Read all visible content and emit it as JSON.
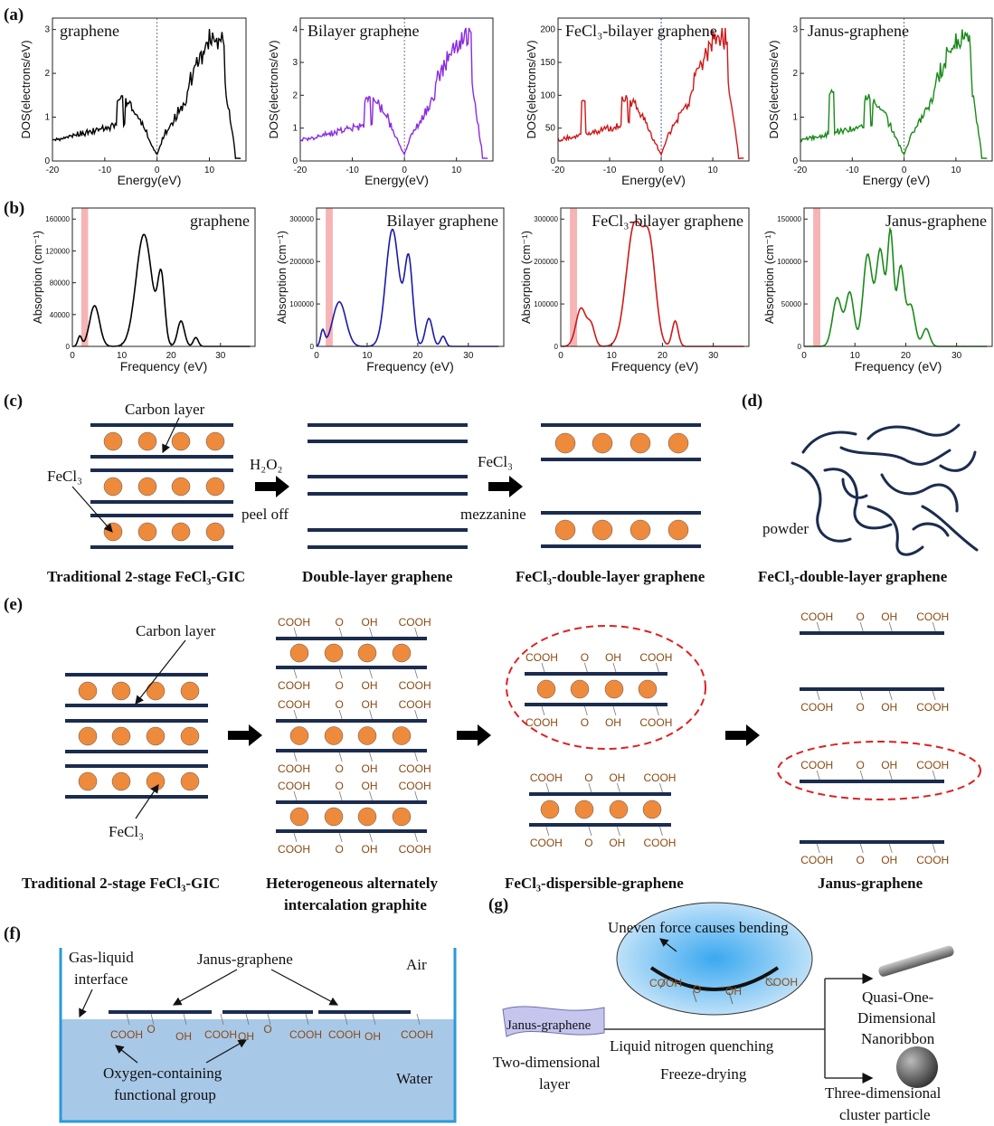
{
  "panels": {
    "a": "(a)",
    "b": "(b)",
    "c": "(c)",
    "d": "(d)",
    "e": "(e)",
    "f": "(f)",
    "g": "(g)"
  },
  "colors": {
    "graphene": "#000000",
    "bilayer_dos": "#8a2be2",
    "bilayer_abs": "#1a1aaa",
    "fecl3": "#d01818",
    "janus": "#1a8a1a",
    "layer": "#1b2c4e",
    "ball": "#ee8a3c",
    "highlight": "#f7b4b4",
    "water": "#a8c8e8",
    "func_group": "#8a4a12"
  },
  "dos_charts": [
    {
      "title": "graphene",
      "ylabel": "DOS(electrons/eV)",
      "xlabel": "Energy(eV)",
      "xticks": [
        "-20",
        "-10",
        "0",
        "10"
      ],
      "yticks": [
        "0",
        "1",
        "2",
        "3"
      ]
    },
    {
      "title": "Bilayer graphene",
      "ylabel": "DOS(electrons/eV)",
      "xlabel": "Energy(eV)",
      "xticks": [
        "-20",
        "-10",
        "0",
        "10"
      ],
      "yticks": [
        "0",
        "1",
        "2",
        "3",
        "4"
      ]
    },
    {
      "title": "FeCl₃-bilayer graphene",
      "ylabel": "DOS(electrons/eV)",
      "xlabel": "Energy(eV)",
      "xticks": [
        "-20",
        "-10",
        "0",
        "10"
      ],
      "yticks": [
        "0",
        "50",
        "100",
        "150",
        "200"
      ]
    },
    {
      "title": "Janus-graphene",
      "ylabel": "DOS(electrons/eV)",
      "xlabel": "Energy (eV)",
      "xticks": [
        "-20",
        "-10",
        "0",
        "10"
      ],
      "yticks": [
        "0",
        "1",
        "2",
        "3"
      ]
    }
  ],
  "abs_charts": [
    {
      "title": "graphene",
      "ylabel": "Absorption (cm⁻¹)",
      "xlabel": "Frequency (eV)",
      "xticks": [
        "0",
        "10",
        "20",
        "30"
      ],
      "yticks": [
        "0",
        "40000",
        "80000",
        "120000",
        "160000"
      ]
    },
    {
      "title": "Bilayer graphene",
      "ylabel": "Absorption (cm⁻¹)",
      "xlabel": "Frequency (eV)",
      "xticks": [
        "0",
        "10",
        "20",
        "30"
      ],
      "yticks": [
        "0",
        "100000",
        "200000",
        "300000"
      ]
    },
    {
      "title": "FeCl₃-bilayer graphene",
      "ylabel": "Absorption (cm⁻¹)",
      "xlabel": "Frequency (eV)",
      "xticks": [
        "0",
        "10",
        "20",
        "30"
      ],
      "yticks": [
        "0",
        "100000",
        "200000",
        "300000"
      ]
    },
    {
      "title": "Janus-graphene",
      "ylabel": "Absorption (cm⁻¹)",
      "xlabel": "Frequency (eV)",
      "xticks": [
        "0",
        "10",
        "20",
        "30"
      ],
      "yticks": [
        "0",
        "50000",
        "100000",
        "150000"
      ]
    }
  ],
  "c": {
    "carbon_layer": "Carbon layer",
    "fecl3": "FeCl₃",
    "h2o2": "H₂O₂",
    "peel_off": "peel off",
    "fecl3_arrow": "FeCl₃",
    "mezzanine": "mezzanine",
    "caption1": "Traditional 2-stage FeCl₃-GIC",
    "caption2": "Double-layer graphene",
    "caption3": "FeCl₃-double-layer graphene"
  },
  "d": {
    "powder": "powder",
    "caption": "FeCl₃-double-layer graphene"
  },
  "e": {
    "carbon_layer": "Carbon layer",
    "fecl3": "FeCl₃",
    "cooh": "COOH",
    "oh": "OH",
    "o": "O",
    "caption1": "Traditional 2-stage FeCl₃-GIC",
    "caption2a": "Heterogeneous alternately",
    "caption2b": "intercalation graphite",
    "caption3": "FeCl₃-dispersible-graphene",
    "caption4": "Janus-graphene"
  },
  "f": {
    "gas_liquid_1": "Gas-liquid",
    "gas_liquid_2": "interface",
    "janus": "Janus-graphene",
    "air": "Air",
    "water": "Water",
    "oxygen_1": "Oxygen-containing",
    "oxygen_2": "functional group"
  },
  "g": {
    "uneven": "Uneven force causes bending",
    "janus_label": "Janus-graphene",
    "two_dim_1": "Two-dimensional",
    "two_dim_2": "layer",
    "liquid_n2": "Liquid nitrogen quenching",
    "freeze": "Freeze-drying",
    "quasi_1": "Quasi-One-",
    "quasi_2": "Dimensional",
    "quasi_3": "Nanoribbon",
    "three_1": "Three-dimensional",
    "three_2": "cluster particle"
  }
}
